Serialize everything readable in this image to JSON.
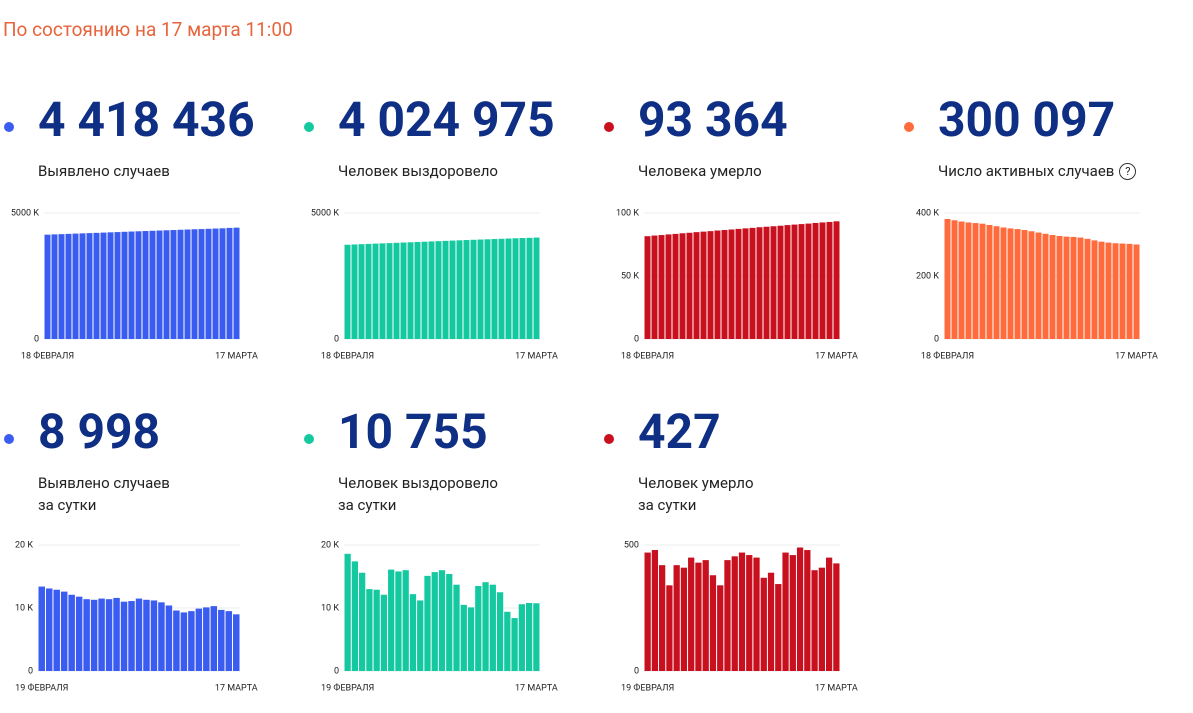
{
  "header": "По состоянию на 17 марта 11:00",
  "cards": [
    {
      "number": "4 418 436",
      "label": [
        "Выявлено случаев"
      ],
      "chart_data": {
        "type": "bar",
        "color": "#3b5cf0",
        "grid": true,
        "categories": [
          "18 ФЕВРАЛЯ",
          null,
          null,
          null,
          null,
          null,
          null,
          null,
          null,
          null,
          null,
          null,
          null,
          null,
          null,
          null,
          null,
          null,
          null,
          null,
          null,
          null,
          null,
          null,
          null,
          null,
          null,
          "17 МАРТА"
        ],
        "values": [
          4140,
          4151,
          4161,
          4172,
          4182,
          4192,
          4202,
          4212,
          4222,
          4233,
          4243,
          4254,
          4264,
          4274,
          4284,
          4294,
          4304,
          4314,
          4324,
          4334,
          4344,
          4354,
          4363,
          4373,
          4383,
          4393,
          4409,
          4418
        ],
        "ylim": [
          0,
          5000
        ],
        "yticks": [
          0,
          {
            "value": 5000,
            "label": "5000 K"
          }
        ]
      }
    },
    {
      "number": "4 024 975",
      "label": [
        "Человек выздоровело"
      ],
      "chart_data": {
        "type": "bar",
        "color": "#14c9a0",
        "grid": true,
        "categories": [
          "18 ФЕВРАЛЯ",
          null,
          null,
          null,
          null,
          null,
          null,
          null,
          null,
          null,
          null,
          null,
          null,
          null,
          null,
          null,
          null,
          null,
          null,
          null,
          null,
          null,
          null,
          null,
          null,
          null,
          null,
          "17 МАРТА"
        ],
        "values": [
          3740,
          3751,
          3762,
          3773,
          3784,
          3795,
          3806,
          3817,
          3828,
          3839,
          3850,
          3861,
          3872,
          3883,
          3894,
          3905,
          3916,
          3927,
          3937,
          3947,
          3957,
          3967,
          3977,
          3987,
          3997,
          4007,
          4014,
          4025
        ],
        "ylim": [
          0,
          5000
        ],
        "yticks": [
          0,
          {
            "value": 5000,
            "label": "5000 K"
          }
        ]
      }
    },
    {
      "number": "93 364",
      "label": [
        "Человека умерло"
      ],
      "chart_data": {
        "type": "bar",
        "color": "#c8101e",
        "grid": true,
        "categories": [
          "18 ФЕВРАЛЯ",
          null,
          null,
          null,
          null,
          null,
          null,
          null,
          null,
          null,
          null,
          null,
          null,
          null,
          null,
          null,
          null,
          null,
          null,
          null,
          null,
          null,
          null,
          null,
          null,
          null,
          null,
          "17 МАРТА"
        ],
        "values": [
          81.6,
          82.1,
          82.5,
          83.0,
          83.4,
          83.9,
          84.3,
          84.8,
          85.2,
          85.6,
          86.1,
          86.5,
          86.9,
          87.4,
          87.8,
          88.2,
          88.7,
          89.1,
          89.5,
          89.9,
          90.4,
          90.8,
          91.2,
          91.6,
          92.1,
          92.5,
          92.9,
          93.4
        ],
        "ylim": [
          0,
          100
        ],
        "yticks": [
          0,
          {
            "value": 50,
            "label": "50 K"
          },
          {
            "value": 100,
            "label": "100 K"
          }
        ]
      }
    },
    {
      "number": "300 097",
      "label": [
        "Число активных случаев"
      ],
      "help": "?",
      "chart_data": {
        "type": "bar",
        "color": "#ff6b3d",
        "grid": true,
        "categories": [
          "18 ФЕВРАЛЯ",
          null,
          null,
          null,
          null,
          null,
          null,
          null,
          null,
          null,
          null,
          null,
          null,
          null,
          null,
          null,
          null,
          null,
          null,
          null,
          null,
          null,
          null,
          null,
          null,
          null,
          null,
          "17 МАРТА"
        ],
        "values": [
          381,
          377,
          373,
          370,
          368,
          366,
          362,
          358,
          354,
          351,
          349,
          346,
          342,
          338,
          334,
          330,
          327,
          325,
          324,
          322,
          318,
          313,
          309,
          306,
          304,
          303,
          302,
          300
        ],
        "ylim": [
          0,
          400
        ],
        "yticks": [
          0,
          {
            "value": 200,
            "label": "200 K"
          },
          {
            "value": 400,
            "label": "400 K"
          }
        ]
      }
    },
    {
      "number": "8 998",
      "label": [
        "Выявлено случаев",
        "за сутки"
      ],
      "chart_data": {
        "type": "bar",
        "color": "#3b5cf0",
        "grid": true,
        "categories": [
          "19 ФЕВРАЛЯ",
          null,
          null,
          null,
          null,
          null,
          null,
          null,
          null,
          null,
          null,
          null,
          null,
          null,
          null,
          null,
          null,
          null,
          null,
          null,
          null,
          null,
          null,
          null,
          null,
          null,
          "17 МАРТА"
        ],
        "values": [
          13.4,
          13.1,
          12.9,
          12.6,
          12.1,
          11.8,
          11.4,
          11.3,
          11.5,
          11.4,
          11.6,
          11.0,
          11.1,
          11.5,
          11.3,
          11.2,
          10.9,
          10.4,
          9.6,
          9.3,
          9.5,
          9.9,
          10.1,
          10.3,
          9.7,
          9.5,
          8.998
        ],
        "ylim": [
          0,
          20
        ],
        "yticks": [
          0,
          {
            "value": 10,
            "label": "10 K"
          },
          {
            "value": 20,
            "label": "20 K"
          }
        ]
      }
    },
    {
      "number": "10 755",
      "label": [
        "Человек выздоровело",
        "за сутки"
      ],
      "chart_data": {
        "type": "bar",
        "color": "#14c9a0",
        "grid": true,
        "categories": [
          "19 ФЕВРАЛЯ",
          null,
          null,
          null,
          null,
          null,
          null,
          null,
          null,
          null,
          null,
          null,
          null,
          null,
          null,
          null,
          null,
          null,
          null,
          null,
          null,
          null,
          null,
          null,
          null,
          null,
          "17 МАРТА"
        ],
        "values": [
          18.6,
          17.4,
          15.6,
          13.0,
          12.9,
          12.1,
          16.1,
          15.8,
          16.0,
          12.2,
          11.2,
          15.1,
          15.7,
          16.0,
          15.4,
          13.7,
          10.5,
          10.1,
          13.5,
          14.1,
          13.7,
          12.5,
          9.4,
          8.4,
          10.6,
          10.8,
          10.755
        ],
        "ylim": [
          0,
          20
        ],
        "yticks": [
          0,
          {
            "value": 10,
            "label": "10 K"
          },
          {
            "value": 20,
            "label": "20 K"
          }
        ]
      }
    },
    {
      "number": "427",
      "label": [
        "Человек умерло",
        "за сутки"
      ],
      "chart_data": {
        "type": "bar",
        "color": "#c8101e",
        "grid": true,
        "categories": [
          "19 ФЕВРАЛЯ",
          null,
          null,
          null,
          null,
          null,
          null,
          null,
          null,
          null,
          null,
          null,
          null,
          null,
          null,
          null,
          null,
          null,
          null,
          null,
          null,
          null,
          null,
          null,
          null,
          null,
          "17 МАРТА"
        ],
        "values": [
          470,
          480,
          420,
          340,
          420,
          410,
          450,
          430,
          440,
          380,
          340,
          440,
          455,
          470,
          460,
          450,
          370,
          390,
          345,
          470,
          460,
          490,
          480,
          400,
          410,
          450,
          427
        ],
        "ylim": [
          0,
          500
        ],
        "yticks": [
          0,
          500
        ]
      }
    }
  ]
}
